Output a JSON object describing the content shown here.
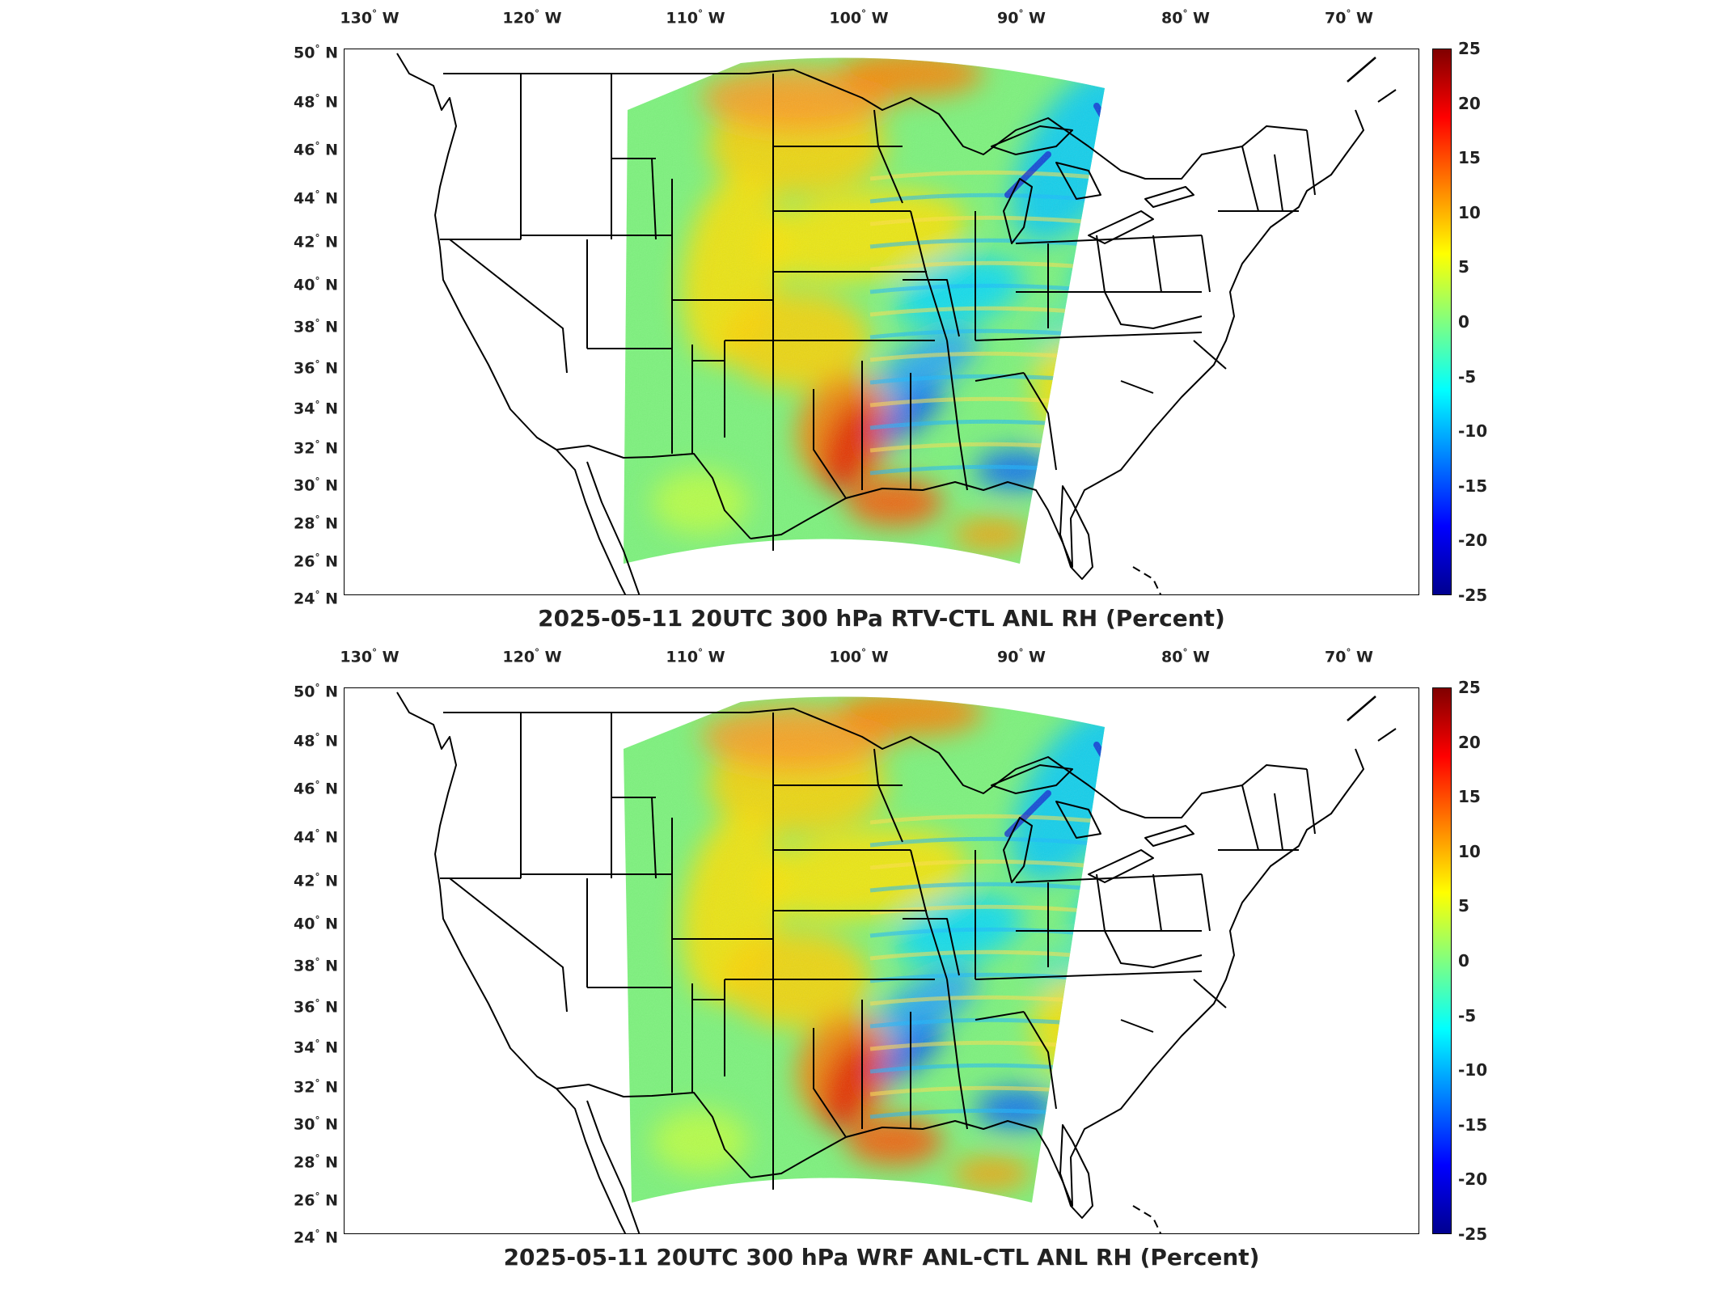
{
  "axes": {
    "lon_labels": [
      "130",
      "120",
      "110",
      "100",
      "90",
      "80",
      "70"
    ],
    "lon_suffix": "W",
    "lat_labels": [
      "50",
      "48",
      "46",
      "44",
      "42",
      "40",
      "38",
      "36",
      "34",
      "32",
      "30",
      "28",
      "26",
      "24"
    ],
    "lat_suffix": "N",
    "deg_symbol": "°"
  },
  "colorbar": {
    "ticks": [
      "25",
      "20",
      "15",
      "10",
      "5",
      "0",
      "-5",
      "-10",
      "-15",
      "-20",
      "-25"
    ],
    "colormap": [
      "#00008f",
      "#0000ff",
      "#0080ff",
      "#00ffff",
      "#80ff80",
      "#ffff00",
      "#ff8000",
      "#ff0000",
      "#800000"
    ],
    "range": [
      -25,
      25
    ]
  },
  "panels": [
    {
      "title": "2025-05-11 20UTC 300 hPa RTV-CTL ANL RH (Percent)"
    },
    {
      "title": "2025-05-11 20UTC 300 hPa WRF ANL-CTL ANL RH (Percent)"
    }
  ]
}
